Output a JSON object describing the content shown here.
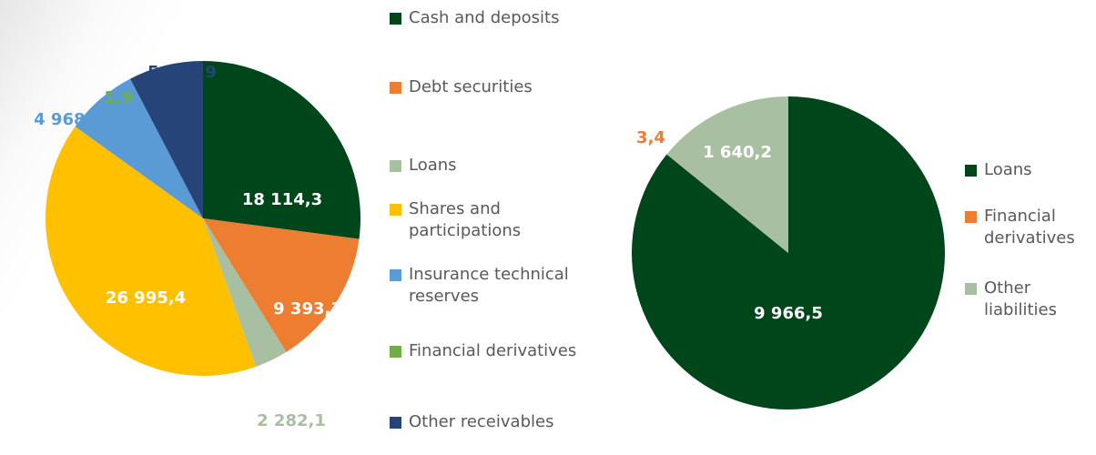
{
  "chart_data": [
    {
      "type": "pie",
      "categories": [
        "Cash and deposits",
        "Debt securities",
        "Loans",
        "Shares and participations",
        "Insurance technical reserves",
        "Financial derivatives",
        "Other receivables"
      ],
      "values": [
        18114.3,
        9393.3,
        2282.1,
        26995.4,
        4968.9,
        1.9,
        5113.9
      ],
      "value_labels": [
        "18 114,3",
        "9 393,3",
        "2 282,1",
        "26 995,4",
        "4 968,9",
        "1,9",
        "5 113,9"
      ],
      "colors": [
        "#00461b",
        "#ed7d31",
        "#a9bfa2",
        "#ffc000",
        "#5b9bd5",
        "#70ad47",
        "#264478"
      ]
    },
    {
      "type": "pie",
      "categories": [
        "Loans",
        "Financial derivatives",
        "Other liabilities"
      ],
      "values": [
        9966.5,
        3.4,
        1640.2
      ],
      "value_labels": [
        "9 966,5",
        "3,4",
        "1 640,2"
      ],
      "colors": [
        "#00461b",
        "#ed7d31",
        "#a9bfa2"
      ]
    }
  ]
}
